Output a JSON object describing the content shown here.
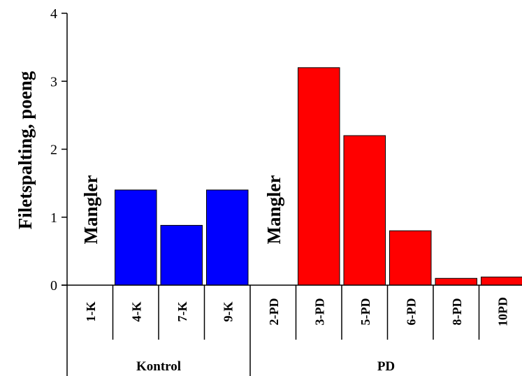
{
  "chart_data": {
    "type": "bar",
    "ylabel": "Filetspalting, poeng",
    "ylim": [
      0,
      4
    ],
    "yticks": [
      0,
      1,
      2,
      3,
      4
    ],
    "grid": false,
    "categories": [
      "1-K",
      "4-K",
      "7-K",
      "9-K",
      "2-PD",
      "3-PD",
      "5-PD",
      "6-PD",
      "8-PD",
      "10PD"
    ],
    "values": [
      null,
      1.4,
      0.88,
      1.4,
      null,
      3.2,
      2.2,
      0.8,
      0.1,
      0.12
    ],
    "groups": [
      {
        "name": "Kontrol",
        "categories": [
          "1-K",
          "4-K",
          "7-K",
          "9-K"
        ],
        "color": "#0000ff",
        "missing_label": "Mangler"
      },
      {
        "name": "PD",
        "categories": [
          "2-PD",
          "3-PD",
          "5-PD",
          "6-PD",
          "8-PD",
          "10PD"
        ],
        "color": "#ff0000",
        "missing_label": "Mangler"
      }
    ]
  }
}
